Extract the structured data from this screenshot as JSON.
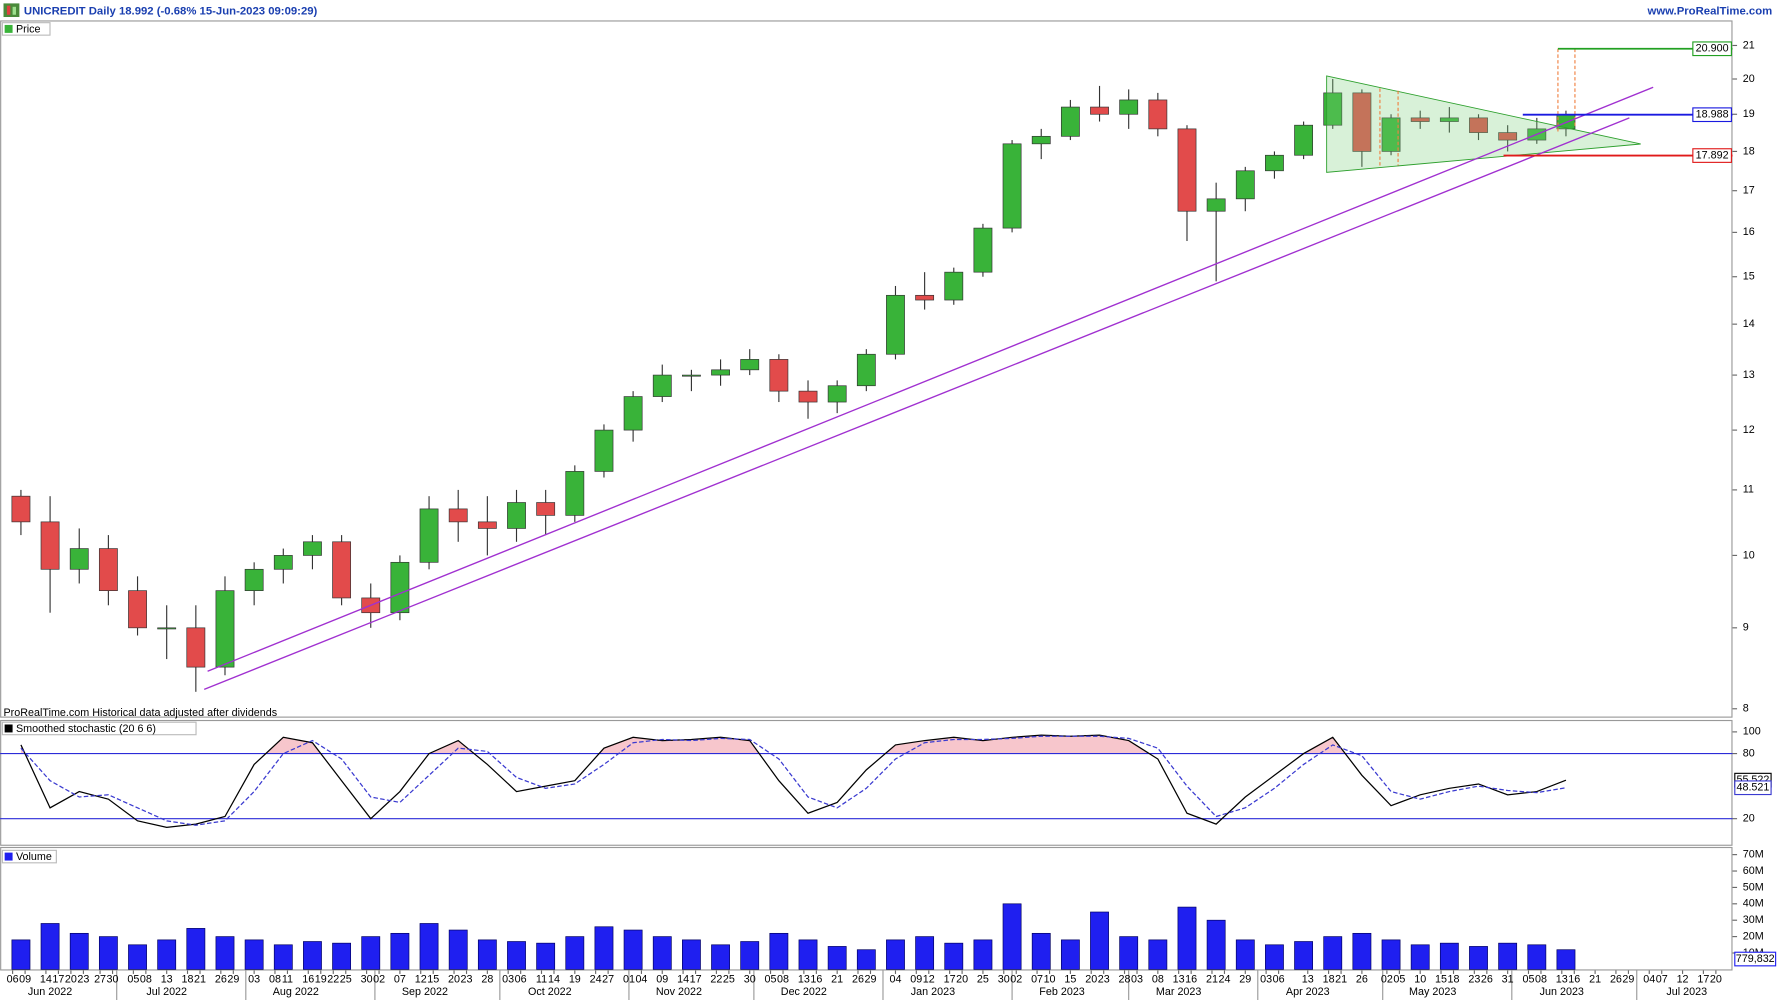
{
  "header": {
    "title": "UNICREDIT Daily 18.992 (-0.68% 15-Jun-2023 09:09:29)",
    "site": "www.ProRealTime.com"
  },
  "chart_data": [
    {
      "type": "candlestick",
      "title": "Price",
      "note": "ProRealTime.com Historical data adjusted after dividends",
      "x": [
        "2022-06-06",
        "2022-06-13",
        "2022-06-20",
        "2022-06-27",
        "2022-07-04",
        "2022-07-11",
        "2022-07-18",
        "2022-07-25",
        "2022-08-01",
        "2022-08-08",
        "2022-08-15",
        "2022-08-22",
        "2022-08-29",
        "2022-09-05",
        "2022-09-12",
        "2022-09-19",
        "2022-09-26",
        "2022-10-03",
        "2022-10-10",
        "2022-10-17",
        "2022-10-24",
        "2022-10-31",
        "2022-11-07",
        "2022-11-14",
        "2022-11-21",
        "2022-11-28",
        "2022-12-05",
        "2022-12-12",
        "2022-12-19",
        "2022-12-26",
        "2023-01-02",
        "2023-01-09",
        "2023-01-16",
        "2023-01-23",
        "2023-01-30",
        "2023-02-06",
        "2023-02-13",
        "2023-02-20",
        "2023-02-27",
        "2023-03-06",
        "2023-03-13",
        "2023-03-20",
        "2023-03-27",
        "2023-04-03",
        "2023-04-10",
        "2023-04-17",
        "2023-04-24",
        "2023-05-01",
        "2023-05-08",
        "2023-05-15",
        "2023-05-22",
        "2023-05-29",
        "2023-06-05",
        "2023-06-12"
      ],
      "open": [
        10.9,
        10.5,
        9.8,
        10.1,
        9.5,
        9.0,
        9.0,
        8.5,
        9.5,
        9.8,
        10.0,
        10.2,
        9.4,
        9.2,
        9.9,
        10.7,
        10.5,
        10.4,
        10.8,
        10.6,
        11.3,
        12.0,
        12.6,
        13.0,
        13.0,
        13.1,
        13.3,
        12.7,
        12.5,
        12.8,
        13.4,
        14.6,
        14.5,
        15.1,
        16.1,
        18.2,
        18.4,
        19.2,
        19.0,
        19.4,
        18.6,
        16.5,
        16.8,
        17.5,
        17.9,
        18.7,
        19.6,
        18.0,
        18.9,
        18.8,
        18.9,
        18.5,
        18.3,
        18.6
      ],
      "high": [
        11.0,
        10.9,
        10.4,
        10.3,
        9.7,
        9.3,
        9.3,
        9.7,
        9.9,
        10.1,
        10.3,
        10.3,
        9.6,
        10.0,
        10.9,
        11.0,
        10.9,
        11.0,
        11.0,
        11.4,
        12.1,
        12.7,
        13.2,
        13.1,
        13.3,
        13.5,
        13.4,
        12.9,
        12.9,
        13.5,
        14.8,
        15.1,
        15.2,
        16.2,
        18.3,
        18.6,
        19.4,
        19.8,
        19.7,
        19.6,
        18.7,
        17.2,
        17.6,
        18.0,
        18.8,
        20.0,
        19.7,
        19.0,
        19.1,
        19.2,
        19.0,
        18.7,
        18.9,
        19.1
      ],
      "low": [
        10.3,
        9.2,
        9.6,
        9.3,
        8.9,
        8.6,
        8.2,
        8.4,
        9.3,
        9.6,
        9.8,
        9.3,
        9.0,
        9.1,
        9.8,
        10.2,
        10.0,
        10.2,
        10.3,
        10.5,
        11.2,
        11.8,
        12.5,
        12.7,
        12.8,
        13.0,
        12.5,
        12.2,
        12.3,
        12.7,
        13.3,
        14.3,
        14.4,
        15.0,
        16.0,
        17.8,
        18.3,
        18.8,
        18.6,
        18.4,
        15.8,
        14.9,
        16.5,
        17.3,
        17.8,
        18.6,
        17.6,
        17.9,
        18.6,
        18.5,
        18.3,
        18.0,
        18.2,
        18.4
      ],
      "close": [
        10.5,
        9.8,
        10.1,
        9.5,
        9.0,
        9.0,
        8.5,
        9.5,
        9.8,
        10.0,
        10.2,
        9.4,
        9.2,
        9.9,
        10.7,
        10.5,
        10.4,
        10.8,
        10.6,
        11.3,
        12.0,
        12.6,
        13.0,
        13.0,
        13.1,
        13.3,
        12.7,
        12.5,
        12.8,
        13.4,
        14.6,
        14.5,
        15.1,
        16.1,
        18.2,
        18.4,
        19.2,
        19.0,
        19.4,
        18.6,
        16.5,
        16.8,
        17.5,
        17.9,
        18.7,
        19.6,
        18.0,
        18.9,
        18.8,
        18.9,
        18.5,
        18.3,
        18.6,
        18.992
      ],
      "up_color": "#39b339",
      "down_color": "#e24b4b",
      "log_scale": true,
      "xlim": [
        "2022-06-03",
        "2023-07-24"
      ],
      "ylim": [
        7.91,
        21.78
      ],
      "yticks": [
        8,
        9,
        10,
        11,
        12,
        13,
        14,
        15,
        16,
        17,
        18,
        19,
        20,
        21
      ],
      "levels": [
        {
          "value": 20.9,
          "label": "20.900",
          "color": "#22a022"
        },
        {
          "value": 18.988,
          "label": "18.988",
          "color": "#1a1ae0"
        },
        {
          "value": 17.892,
          "label": "17.892",
          "color": "#e01a1a"
        }
      ]
    },
    {
      "type": "line",
      "title": "Smoothed stochastic (20 6 6)",
      "series": [
        {
          "color": "#000000",
          "values": [
            88,
            30,
            45,
            38,
            18,
            12,
            15,
            22,
            70,
            95,
            90,
            55,
            20,
            45,
            80,
            92,
            70,
            45,
            50,
            55,
            85,
            95,
            92,
            93,
            95,
            92,
            55,
            25,
            35,
            65,
            88,
            92,
            95,
            92,
            95,
            97,
            96,
            97,
            92,
            75,
            25,
            15,
            40,
            60,
            80,
            95,
            60,
            32,
            42,
            48,
            52,
            42,
            45,
            55.522
          ]
        },
        {
          "color": "#3a3ad0",
          "dashed": true,
          "values": [
            85,
            55,
            40,
            42,
            30,
            18,
            14,
            18,
            45,
            80,
            92,
            75,
            40,
            35,
            60,
            85,
            82,
            58,
            48,
            52,
            70,
            90,
            93,
            92,
            94,
            93,
            75,
            40,
            30,
            48,
            75,
            90,
            93,
            93,
            94,
            96,
            96,
            96,
            94,
            85,
            50,
            22,
            30,
            48,
            70,
            88,
            78,
            45,
            38,
            45,
            50,
            46,
            44,
            48.521
          ]
        }
      ],
      "overbought_color": "#f7c6cc",
      "ylim": [
        -5,
        111
      ],
      "yticks": [
        20,
        80,
        100
      ],
      "levels": [
        20,
        80
      ],
      "level_color": "#2b2bd8"
    },
    {
      "type": "bar",
      "title": "Volume",
      "color": "#1f1ff0",
      "values": [
        18,
        28,
        22,
        20,
        15,
        18,
        25,
        20,
        18,
        15,
        17,
        16,
        20,
        22,
        28,
        24,
        18,
        17,
        16,
        20,
        26,
        24,
        20,
        18,
        15,
        17,
        22,
        18,
        14,
        12,
        18,
        20,
        16,
        18,
        40,
        22,
        18,
        35,
        20,
        18,
        38,
        30,
        18,
        15,
        17,
        20,
        22,
        18,
        15,
        16,
        14,
        16,
        15,
        12
      ],
      "last": {
        "value": 0.779832,
        "label": "779,832"
      },
      "ylim": [
        0,
        74
      ],
      "yticks": [
        {
          "value": 10,
          "label": "10M"
        },
        {
          "value": 20,
          "label": "20M"
        },
        {
          "value": 30,
          "label": "30M"
        },
        {
          "value": 40,
          "label": "40M"
        },
        {
          "value": 50,
          "label": "50M"
        },
        {
          "value": 60,
          "label": "60M"
        },
        {
          "value": 70,
          "label": "70M"
        }
      ],
      "xticks": [
        {
          "value": "2022-06-06",
          "label": "06"
        },
        {
          "value": "2022-06-09",
          "label": "09"
        },
        {
          "value": "2022-06-14",
          "label": "14"
        },
        {
          "value": "2022-06-17",
          "label": "17"
        },
        {
          "value": "2022-06-20",
          "label": "20"
        },
        {
          "value": "2022-06-23",
          "label": "23"
        },
        {
          "value": "2022-06-27",
          "label": "27"
        },
        {
          "value": "2022-06-30",
          "label": "30"
        },
        {
          "value": "2022-07-05",
          "label": "05"
        },
        {
          "value": "2022-07-08",
          "label": "08"
        },
        {
          "value": "2022-07-13",
          "label": "13"
        },
        {
          "value": "2022-07-18",
          "label": "18"
        },
        {
          "value": "2022-07-21",
          "label": "21"
        },
        {
          "value": "2022-07-26",
          "label": "26"
        },
        {
          "value": "2022-07-29",
          "label": "29"
        },
        {
          "value": "2022-08-03",
          "label": "03"
        },
        {
          "value": "2022-08-08",
          "label": "08"
        },
        {
          "value": "2022-08-11",
          "label": "11"
        },
        {
          "value": "2022-08-16",
          "label": "16"
        },
        {
          "value": "2022-08-19",
          "label": "19"
        },
        {
          "value": "2022-08-22",
          "label": "22"
        },
        {
          "value": "2022-08-25",
          "label": "25"
        },
        {
          "value": "2022-08-30",
          "label": "30"
        },
        {
          "value": "2022-09-02",
          "label": "02"
        },
        {
          "value": "2022-09-07",
          "label": "07"
        },
        {
          "value": "2022-09-12",
          "label": "12"
        },
        {
          "value": "2022-09-15",
          "label": "15"
        },
        {
          "value": "2022-09-20",
          "label": "20"
        },
        {
          "value": "2022-09-23",
          "label": "23"
        },
        {
          "value": "2022-09-28",
          "label": "28"
        },
        {
          "value": "2022-10-03",
          "label": "03"
        },
        {
          "value": "2022-10-06",
          "label": "06"
        },
        {
          "value": "2022-10-11",
          "label": "11"
        },
        {
          "value": "2022-10-14",
          "label": "14"
        },
        {
          "value": "2022-10-19",
          "label": "19"
        },
        {
          "value": "2022-10-24",
          "label": "24"
        },
        {
          "value": "2022-10-27",
          "label": "27"
        },
        {
          "value": "2022-11-01",
          "label": "01"
        },
        {
          "value": "2022-11-04",
          "label": "04"
        },
        {
          "value": "2022-11-09",
          "label": "09"
        },
        {
          "value": "2022-11-14",
          "label": "14"
        },
        {
          "value": "2022-11-17",
          "label": "17"
        },
        {
          "value": "2022-11-22",
          "label": "22"
        },
        {
          "value": "2022-11-25",
          "label": "25"
        },
        {
          "value": "2022-11-30",
          "label": "30"
        },
        {
          "value": "2022-12-05",
          "label": "05"
        },
        {
          "value": "2022-12-08",
          "label": "08"
        },
        {
          "value": "2022-12-13",
          "label": "13"
        },
        {
          "value": "2022-12-16",
          "label": "16"
        },
        {
          "value": "2022-12-21",
          "label": "21"
        },
        {
          "value": "2022-12-26",
          "label": "26"
        },
        {
          "value": "2022-12-29",
          "label": "29"
        },
        {
          "value": "2023-01-04",
          "label": "04"
        },
        {
          "value": "2023-01-09",
          "label": "09"
        },
        {
          "value": "2023-01-12",
          "label": "12"
        },
        {
          "value": "2023-01-17",
          "label": "17"
        },
        {
          "value": "2023-01-20",
          "label": "20"
        },
        {
          "value": "2023-01-25",
          "label": "25"
        },
        {
          "value": "2023-01-30",
          "label": "30"
        },
        {
          "value": "2023-02-02",
          "label": "02"
        },
        {
          "value": "2023-02-07",
          "label": "07"
        },
        {
          "value": "2023-02-10",
          "label": "10"
        },
        {
          "value": "2023-02-15",
          "label": "15"
        },
        {
          "value": "2023-02-20",
          "label": "20"
        },
        {
          "value": "2023-02-23",
          "label": "23"
        },
        {
          "value": "2023-02-28",
          "label": "28"
        },
        {
          "value": "2023-03-03",
          "label": "03"
        },
        {
          "value": "2023-03-08",
          "label": "08"
        },
        {
          "value": "2023-03-13",
          "label": "13"
        },
        {
          "value": "2023-03-16",
          "label": "16"
        },
        {
          "value": "2023-03-21",
          "label": "21"
        },
        {
          "value": "2023-03-24",
          "label": "24"
        },
        {
          "value": "2023-03-29",
          "label": "29"
        },
        {
          "value": "2023-04-03",
          "label": "03"
        },
        {
          "value": "2023-04-06",
          "label": "06"
        },
        {
          "value": "2023-04-13",
          "label": "13"
        },
        {
          "value": "2023-04-18",
          "label": "18"
        },
        {
          "value": "2023-04-21",
          "label": "21"
        },
        {
          "value": "2023-04-26",
          "label": "26"
        },
        {
          "value": "2023-05-02",
          "label": "02"
        },
        {
          "value": "2023-05-05",
          "label": "05"
        },
        {
          "value": "2023-05-10",
          "label": "10"
        },
        {
          "value": "2023-05-15",
          "label": "15"
        },
        {
          "value": "2023-05-18",
          "label": "18"
        },
        {
          "value": "2023-05-23",
          "label": "23"
        },
        {
          "value": "2023-05-26",
          "label": "26"
        },
        {
          "value": "2023-05-31",
          "label": "31"
        },
        {
          "value": "2023-06-05",
          "label": "05"
        },
        {
          "value": "2023-06-08",
          "label": "08"
        },
        {
          "value": "2023-06-13",
          "label": "13"
        },
        {
          "value": "2023-06-16",
          "label": "16"
        },
        {
          "value": "2023-06-21",
          "label": "21"
        },
        {
          "value": "2023-06-26",
          "label": "26"
        },
        {
          "value": "2023-06-29",
          "label": "29"
        },
        {
          "value": "2023-07-04",
          "label": "04"
        },
        {
          "value": "2023-07-07",
          "label": "07"
        },
        {
          "value": "2023-07-12",
          "label": "12"
        },
        {
          "value": "2023-07-17",
          "label": "17"
        },
        {
          "value": "2023-07-20",
          "label": "20"
        }
      ],
      "months": [
        {
          "value": "2022-06",
          "label": "Jun 2022"
        },
        {
          "value": "2022-07",
          "label": "Jul 2022"
        },
        {
          "value": "2022-08",
          "label": "Aug 2022"
        },
        {
          "value": "2022-09",
          "label": "Sep 2022"
        },
        {
          "value": "2022-10",
          "label": "Oct 2022"
        },
        {
          "value": "2022-11",
          "label": "Nov 2022"
        },
        {
          "value": "2022-12",
          "label": "Dec 2022"
        },
        {
          "value": "2023-01",
          "label": "Jan 2023"
        },
        {
          "value": "2023-02",
          "label": "Feb 2023"
        },
        {
          "value": "2023-03",
          "label": "Mar 2023"
        },
        {
          "value": "2023-04",
          "label": "Apr 2023"
        },
        {
          "value": "2023-05",
          "label": "May 2023"
        },
        {
          "value": "2023-06",
          "label": "Jun 2023"
        },
        {
          "value": "2023-07",
          "label": "Jul 2023"
        }
      ]
    }
  ]
}
